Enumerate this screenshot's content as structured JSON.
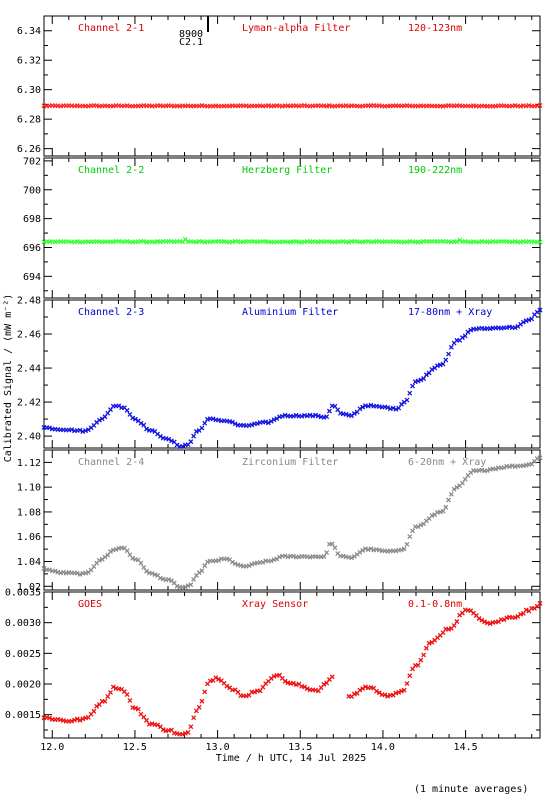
{
  "figure": {
    "xlabel": "Time / h UTC, 14 Jul 2025",
    "ylabel": "Calibrated Signal / (mW m⁻²)",
    "footnote": "(1 minute averages)",
    "marker": {
      "line1": "8900",
      "line2": "C2.1"
    }
  },
  "chart_data": [
    {
      "type": "scatter",
      "id": "ch1",
      "labels": [
        "Channel 2-1",
        "Lyman-alpha Filter",
        "120-123nm"
      ],
      "label_color": "#dd0000",
      "color": "#ff2020",
      "ylim": [
        6.255,
        6.35
      ],
      "yticks": [
        6.26,
        6.28,
        6.3,
        6.32,
        6.34
      ],
      "tick_decimals": 2,
      "anchors": [
        [
          11.95,
          6.289
        ],
        [
          14.95,
          6.289
        ]
      ],
      "noise": 0.0003
    },
    {
      "type": "scatter",
      "id": "ch2",
      "labels": [
        "Channel 2-2",
        "Herzberg Filter",
        "190-222nm"
      ],
      "label_color": "#00cc00",
      "color": "#33ff33",
      "ylim": [
        692.5,
        702.2
      ],
      "yticks": [
        694,
        696,
        698,
        700,
        702
      ],
      "tick_decimals": 0,
      "anchors": [
        [
          11.95,
          696.4
        ],
        [
          12.8,
          696.4
        ],
        [
          12.81,
          696.7
        ],
        [
          12.82,
          696.4
        ],
        [
          14.45,
          696.4
        ],
        [
          14.46,
          696.55
        ],
        [
          14.47,
          696.4
        ],
        [
          14.95,
          696.4
        ]
      ],
      "noise": 0.03
    },
    {
      "type": "scatter",
      "id": "ch3",
      "labels": [
        "Channel 2-3",
        "Aluminium Filter",
        "17-80nm + Xray"
      ],
      "label_color": "#0000cc",
      "color": "#1414e0",
      "ylim": [
        2.393,
        2.48
      ],
      "yticks": [
        2.4,
        2.42,
        2.44,
        2.46,
        2.48
      ],
      "tick_decimals": 2,
      "anchors": [
        [
          11.95,
          2.405
        ],
        [
          12.05,
          2.404
        ],
        [
          12.2,
          2.403
        ],
        [
          12.3,
          2.41
        ],
        [
          12.38,
          2.418
        ],
        [
          12.43,
          2.417
        ],
        [
          12.5,
          2.41
        ],
        [
          12.6,
          2.403
        ],
        [
          12.7,
          2.398
        ],
        [
          12.78,
          2.394
        ],
        [
          12.82,
          2.395
        ],
        [
          12.88,
          2.403
        ],
        [
          12.95,
          2.41
        ],
        [
          13.05,
          2.409
        ],
        [
          13.15,
          2.406
        ],
        [
          13.3,
          2.408
        ],
        [
          13.4,
          2.412
        ],
        [
          13.6,
          2.412
        ],
        [
          13.65,
          2.411
        ],
        [
          13.7,
          2.418
        ],
        [
          13.75,
          2.413
        ],
        [
          13.8,
          2.412
        ],
        [
          13.9,
          2.418
        ],
        [
          14.0,
          2.417
        ],
        [
          14.08,
          2.416
        ],
        [
          14.13,
          2.42
        ],
        [
          14.2,
          2.432
        ],
        [
          14.35,
          2.442
        ],
        [
          14.45,
          2.456
        ],
        [
          14.55,
          2.463
        ],
        [
          14.8,
          2.464
        ],
        [
          14.88,
          2.468
        ],
        [
          14.95,
          2.474
        ]
      ],
      "noise": 0.0004
    },
    {
      "type": "scatter",
      "id": "ch4",
      "labels": [
        "Channel 2-4",
        "Zirconium Filter",
        "6-20nm + Xray"
      ],
      "label_color": "#888888",
      "color": "#8c8c8c",
      "ylim": [
        1.017,
        1.13
      ],
      "yticks": [
        1.02,
        1.04,
        1.06,
        1.08,
        1.1,
        1.12
      ],
      "tick_decimals": 2,
      "anchors": [
        [
          11.95,
          1.034
        ],
        [
          12.05,
          1.031
        ],
        [
          12.2,
          1.03
        ],
        [
          12.3,
          1.042
        ],
        [
          12.38,
          1.05
        ],
        [
          12.43,
          1.051
        ],
        [
          12.5,
          1.042
        ],
        [
          12.6,
          1.03
        ],
        [
          12.7,
          1.025
        ],
        [
          12.78,
          1.019
        ],
        [
          12.83,
          1.02
        ],
        [
          12.88,
          1.03
        ],
        [
          12.95,
          1.04
        ],
        [
          13.05,
          1.042
        ],
        [
          13.15,
          1.036
        ],
        [
          13.3,
          1.04
        ],
        [
          13.4,
          1.044
        ],
        [
          13.65,
          1.044
        ],
        [
          13.68,
          1.055
        ],
        [
          13.75,
          1.044
        ],
        [
          13.8,
          1.043
        ],
        [
          13.9,
          1.05
        ],
        [
          14.05,
          1.048
        ],
        [
          14.12,
          1.05
        ],
        [
          14.2,
          1.068
        ],
        [
          14.35,
          1.08
        ],
        [
          14.45,
          1.1
        ],
        [
          14.55,
          1.113
        ],
        [
          14.8,
          1.117
        ],
        [
          14.88,
          1.118
        ],
        [
          14.95,
          1.124
        ]
      ],
      "noise": 0.0006
    },
    {
      "type": "scatter",
      "id": "goes",
      "labels": [
        "GOES",
        "Xray Sensor",
        "0.1-0.8nm"
      ],
      "label_color": "#dd0000",
      "color": "#ee1010",
      "ylim": [
        0.00112,
        0.0035
      ],
      "yticks": [
        0.0015,
        0.002,
        0.0025,
        0.003,
        0.0035
      ],
      "tick_decimals": 4,
      "gaps": [
        [
          13.7,
          13.79
        ]
      ],
      "anchors": [
        [
          11.95,
          0.00145
        ],
        [
          12.1,
          0.0014
        ],
        [
          12.2,
          0.00143
        ],
        [
          12.3,
          0.0017
        ],
        [
          12.38,
          0.00195
        ],
        [
          12.43,
          0.0019
        ],
        [
          12.5,
          0.0016
        ],
        [
          12.6,
          0.00135
        ],
        [
          12.7,
          0.00125
        ],
        [
          12.78,
          0.00117
        ],
        [
          12.82,
          0.0012
        ],
        [
          12.88,
          0.0016
        ],
        [
          12.95,
          0.00205
        ],
        [
          13.0,
          0.0021
        ],
        [
          13.1,
          0.0019
        ],
        [
          13.15,
          0.0018
        ],
        [
          13.25,
          0.0019
        ],
        [
          13.35,
          0.00215
        ],
        [
          13.45,
          0.002
        ],
        [
          13.6,
          0.0019
        ],
        [
          13.7,
          0.0021
        ],
        [
          13.8,
          0.0018
        ],
        [
          13.9,
          0.00195
        ],
        [
          14.05,
          0.0018
        ],
        [
          14.12,
          0.0019
        ],
        [
          14.2,
          0.0023
        ],
        [
          14.3,
          0.0027
        ],
        [
          14.4,
          0.0029
        ],
        [
          14.5,
          0.0032
        ],
        [
          14.65,
          0.003
        ],
        [
          14.8,
          0.0031
        ],
        [
          14.88,
          0.0032
        ],
        [
          14.95,
          0.0033
        ]
      ],
      "noise": 2e-05
    }
  ],
  "x_axis": {
    "xlim": [
      11.95,
      14.95
    ],
    "ticks": [
      12.0,
      12.5,
      13.0,
      13.5,
      14.0,
      14.5
    ]
  }
}
